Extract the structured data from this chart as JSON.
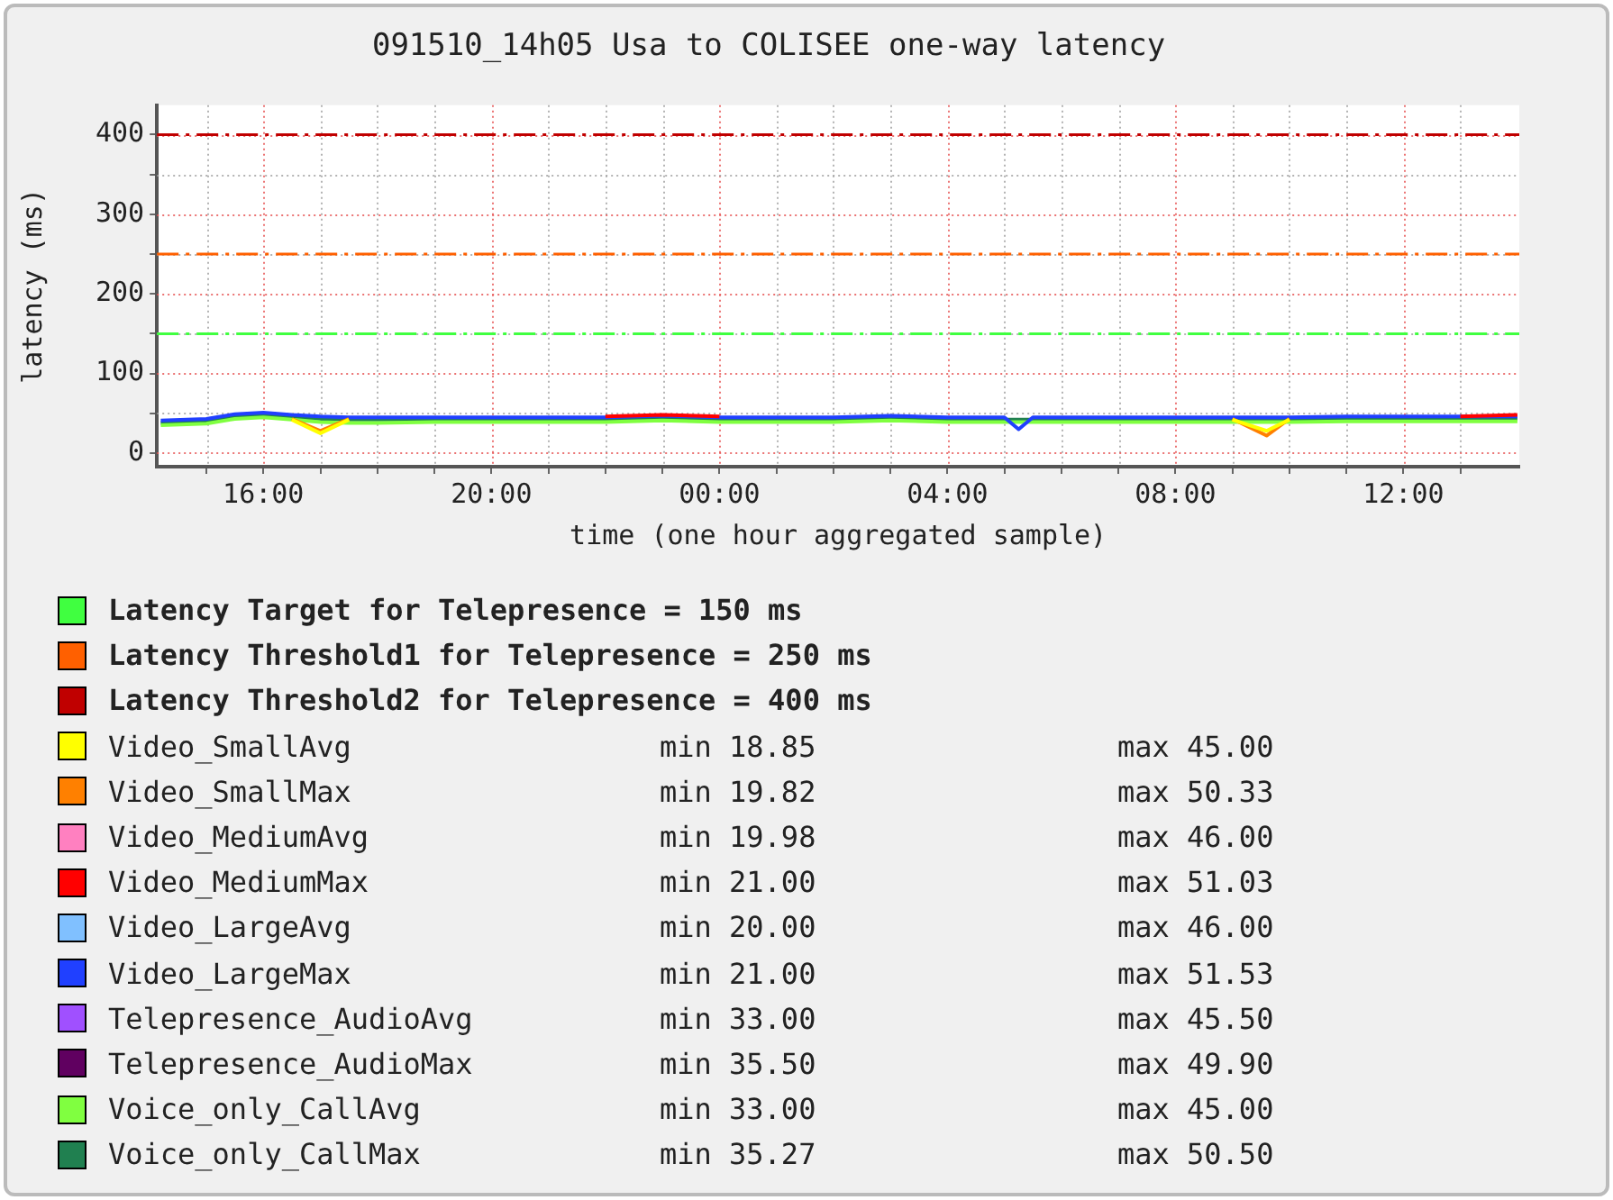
{
  "chart_data": {
    "type": "line",
    "title": "091510_14h05 Usa to COLISEE one-way latency",
    "xlabel": "time (one hour aggregated sample)",
    "ylabel": "latency (ms)",
    "x": [
      "--09-14T14:12",
      "--09-14T15:00",
      "--09-14T15:30",
      "--09-14T16:00",
      "--09-14T16:30",
      "--09-14T17:00",
      "--09-14T17:30",
      "--09-14T18:00",
      "--09-14T19:00",
      "--09-14T20:00",
      "--09-14T21:00",
      "--09-14T22:00",
      "--09-14T23:00",
      "--09-15T00:00",
      "--09-15T01:00",
      "--09-15T02:00",
      "--09-15T03:00",
      "--09-15T04:00",
      "--09-15T05:00",
      "--09-15T05:15",
      "--09-15T05:30",
      "--09-15T06:00",
      "--09-15T07:00",
      "--09-15T08:00",
      "--09-15T09:00",
      "--09-15T09:36",
      "--09-15T10:00",
      "--09-15T11:00",
      "--09-15T12:00",
      "--09-15T13:00",
      "--09-15T14:00"
    ],
    "xlim": [
      "--09-14T14:08",
      "--09-15T14:02"
    ],
    "xticks": [
      {
        "value": "--09-14T15:00",
        "label": null
      },
      {
        "value": "--09-14T16:00",
        "label": "16:00"
      },
      {
        "value": "--09-14T17:00",
        "label": null
      },
      {
        "value": "--09-14T18:00",
        "label": null
      },
      {
        "value": "--09-14T19:00",
        "label": null
      },
      {
        "value": "--09-14T20:00",
        "label": "20:00"
      },
      {
        "value": "--09-14T21:00",
        "label": null
      },
      {
        "value": "--09-14T22:00",
        "label": null
      },
      {
        "value": "--09-14T23:00",
        "label": null
      },
      {
        "value": "--09-15T00:00",
        "label": "00:00"
      },
      {
        "value": "--09-15T01:00",
        "label": null
      },
      {
        "value": "--09-15T02:00",
        "label": null
      },
      {
        "value": "--09-15T03:00",
        "label": null
      },
      {
        "value": "--09-15T04:00",
        "label": "04:00"
      },
      {
        "value": "--09-15T05:00",
        "label": null
      },
      {
        "value": "--09-15T06:00",
        "label": null
      },
      {
        "value": "--09-15T07:00",
        "label": null
      },
      {
        "value": "--09-15T08:00",
        "label": "08:00"
      },
      {
        "value": "--09-15T09:00",
        "label": null
      },
      {
        "value": "--09-15T10:00",
        "label": null
      },
      {
        "value": "--09-15T11:00",
        "label": null
      },
      {
        "value": "--09-15T12:00",
        "label": "12:00"
      },
      {
        "value": "--09-15T13:00",
        "label": null
      }
    ],
    "ylim": [
      -17,
      437
    ],
    "yticks": [
      0,
      {
        "value": 50,
        "label": null
      },
      100,
      {
        "value": 150,
        "label": null
      },
      200,
      {
        "value": 250,
        "label": null
      },
      300,
      {
        "value": 350,
        "label": null
      },
      400
    ],
    "grid": true,
    "legend": "bottom",
    "marker": "none",
    "ref_lines": [
      {
        "axis": "y",
        "value": 150,
        "label": "Latency Target for Telepresence = 150 ms",
        "color": "#40ff40",
        "line_style": "dashed"
      },
      {
        "axis": "y",
        "value": 250,
        "label": "Latency Threshold1 for Telepresence = 250 ms",
        "color": "#ff6000",
        "line_style": "dashed"
      },
      {
        "axis": "y",
        "value": 400,
        "label": "Latency Threshold2 for Telepresence = 400 ms",
        "color": "#c00000",
        "line_style": "dashed"
      }
    ],
    "series": [
      {
        "name": "Video_SmallAvg",
        "color": "#ffff00",
        "values": [
          null,
          null,
          null,
          null,
          42,
          25,
          42,
          null,
          null,
          null,
          null,
          null,
          null,
          null,
          null,
          null,
          null,
          null,
          null,
          null,
          null,
          null,
          null,
          null,
          42,
          28,
          42,
          null,
          null,
          null,
          null
        ]
      },
      {
        "name": "Video_SmallMax",
        "color": "#ff8000",
        "values": [
          null,
          null,
          null,
          null,
          43,
          28,
          43,
          null,
          null,
          null,
          null,
          null,
          null,
          null,
          null,
          null,
          null,
          null,
          null,
          null,
          null,
          null,
          null,
          null,
          43,
          22,
          43,
          null,
          null,
          null,
          null
        ]
      },
      {
        "name": "Video_MediumAvg",
        "color": "#ff80c0",
        "values": [
          null,
          null,
          null,
          null,
          null,
          null,
          null,
          null,
          null,
          null,
          null,
          null,
          null,
          null,
          null,
          null,
          null,
          null,
          null,
          null,
          null,
          null,
          null,
          null,
          null,
          null,
          null,
          null,
          null,
          null,
          null
        ]
      },
      {
        "name": "Video_MediumMax",
        "color": "#ff0000",
        "values": [
          null,
          null,
          null,
          null,
          null,
          null,
          null,
          null,
          null,
          null,
          null,
          46,
          48,
          46,
          null,
          null,
          null,
          null,
          null,
          null,
          null,
          null,
          null,
          null,
          null,
          null,
          null,
          null,
          null,
          46,
          48
        ]
      },
      {
        "name": "Video_LargeAvg",
        "color": "#80c0ff",
        "values": [
          null,
          null,
          null,
          null,
          null,
          null,
          null,
          null,
          null,
          null,
          null,
          null,
          null,
          null,
          null,
          null,
          null,
          null,
          null,
          null,
          null,
          null,
          null,
          null,
          null,
          null,
          null,
          null,
          null,
          null,
          null
        ]
      },
      {
        "name": "Video_LargeMax",
        "color": "#2040ff",
        "values": [
          41,
          43,
          49,
          51,
          48,
          46,
          45,
          45,
          45,
          45,
          45,
          45,
          47,
          45,
          45,
          45,
          47,
          45,
          45,
          30,
          45,
          45,
          45,
          45,
          45,
          45,
          45,
          46,
          46,
          46,
          46
        ]
      },
      {
        "name": "Telepresence_AudioAvg",
        "color": "#a050ff",
        "values": [
          null,
          null,
          null,
          null,
          null,
          null,
          null,
          null,
          null,
          null,
          null,
          null,
          null,
          null,
          null,
          null,
          null,
          null,
          null,
          null,
          null,
          null,
          null,
          null,
          null,
          null,
          null,
          null,
          null,
          null,
          null
        ]
      },
      {
        "name": "Telepresence_AudioMax",
        "color": "#600060",
        "values": [
          null,
          null,
          null,
          null,
          null,
          null,
          null,
          null,
          null,
          null,
          null,
          null,
          null,
          null,
          null,
          null,
          null,
          null,
          null,
          null,
          null,
          null,
          null,
          null,
          null,
          null,
          null,
          null,
          null,
          null,
          null
        ]
      },
      {
        "name": "Voice_only_CallAvg",
        "color": "#80ff40",
        "values": [
          35,
          37,
          43,
          45,
          42,
          39,
          38,
          38,
          39,
          39,
          39,
          39,
          41,
          39,
          39,
          39,
          41,
          39,
          39,
          39,
          39,
          39,
          39,
          39,
          39,
          39,
          39,
          40,
          40,
          40,
          40
        ]
      },
      {
        "name": "Voice_only_CallMax",
        "color": "#208050",
        "values": [
          38,
          40,
          46,
          48,
          45,
          43,
          42,
          42,
          42,
          42,
          42,
          42,
          44,
          42,
          42,
          42,
          44,
          42,
          42,
          42,
          42,
          42,
          42,
          42,
          42,
          42,
          42,
          43,
          43,
          43,
          43
        ]
      }
    ],
    "annotations": [
      "min 18.85",
      "max 45.00",
      "min 19.82",
      "max 50.33",
      "min 19.98",
      "max 46.00",
      "min 21.00",
      "max 51.03",
      "min 20.00",
      "max 46.00",
      "min 21.00",
      "max 51.53",
      "min 33.00",
      "max 45.50",
      "min 35.50",
      "max 49.90",
      "min 33.00",
      "max 45.00",
      "min 35.27",
      "max 50.50"
    ]
  }
}
